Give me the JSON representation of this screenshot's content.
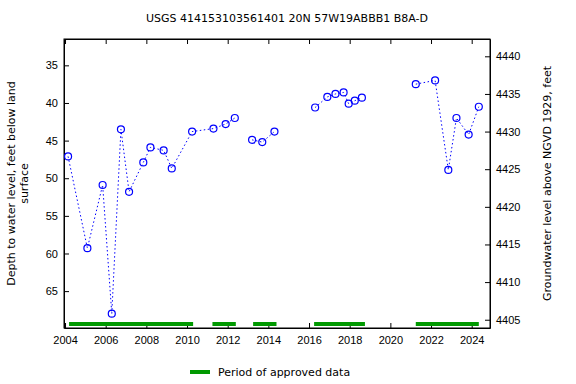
{
  "chart_data": {
    "type": "line",
    "title": "USGS 414153103561401 20N 57W19ABBB1 B8A-D",
    "y_label": [
      "Depth to water level, feet below land",
      "surface"
    ],
    "y2_label": "Groundwater level above NGVD 1929, feet",
    "xlim": [
      2003.95,
      2024.9
    ],
    "xticks": [
      2004,
      2006,
      2008,
      2010,
      2012,
      2014,
      2016,
      2018,
      2020,
      2022,
      2024
    ],
    "ylim": [
      69.9,
      31.5
    ],
    "yticks": [
      35,
      40,
      45,
      50,
      55,
      60,
      65
    ],
    "y2lim": [
      4403.9,
      4442.3
    ],
    "y2ticks": [
      4405,
      4410,
      4415,
      4420,
      4425,
      4430,
      4435,
      4440
    ],
    "series": [
      {
        "color": "#0000ff",
        "marker": "circle-open",
        "line_style": "dotted",
        "x": [
          2004.15,
          2005.1,
          2005.85,
          2006.3,
          2006.75,
          2007.15,
          2007.85,
          2008.2,
          2008.85,
          2009.25,
          2010.25,
          2011.3,
          2011.9,
          2012.35,
          null,
          2013.2,
          2013.7,
          2014.3,
          null,
          2016.3,
          2016.9,
          2017.3,
          2017.7,
          2017.95,
          2018.25,
          2018.6,
          null,
          2021.25,
          2022.2,
          2022.85,
          2023.25,
          2023.85,
          2024.35
        ],
        "values": [
          47.1,
          59.3,
          50.9,
          68.0,
          43.5,
          51.8,
          47.9,
          45.9,
          46.3,
          48.7,
          43.8,
          43.4,
          42.8,
          42.0,
          null,
          44.9,
          45.2,
          43.8,
          null,
          40.6,
          39.2,
          38.8,
          38.6,
          40.1,
          39.7,
          39.3,
          null,
          37.5,
          37.0,
          48.9,
          42.0,
          44.2,
          40.5
        ]
      }
    ],
    "approved_periods": {
      "name": "Period of approved data",
      "color": "#009900",
      "ranges": [
        [
          2004.2,
          2010.3
        ],
        [
          2011.25,
          2012.4
        ],
        [
          2013.25,
          2014.4
        ],
        [
          2016.25,
          2018.75
        ],
        [
          2021.25,
          2024.35
        ]
      ]
    }
  }
}
